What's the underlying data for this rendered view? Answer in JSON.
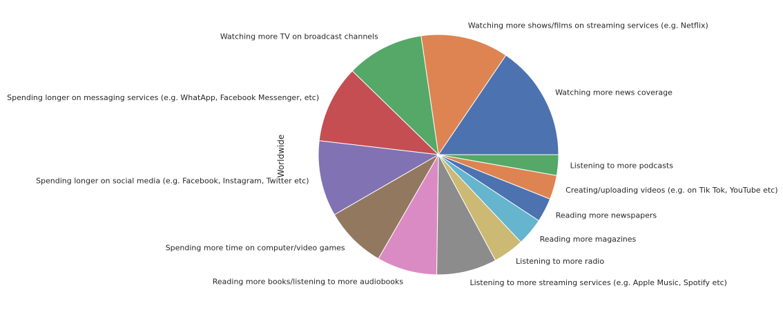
{
  "chart_data": {
    "type": "pie",
    "ylabel": "Worldwide",
    "start_angle_deg": 0,
    "direction": "counterclockwise",
    "slices": [
      {
        "label": "Watching more news coverage",
        "value": 67,
        "color": "#4c72b0"
      },
      {
        "label": "Watching more shows/films on streaming services (e.g. Netflix)",
        "value": 51,
        "color": "#dd8452"
      },
      {
        "label": "Watching more TV on broadcast channels",
        "value": 45,
        "color": "#55a868"
      },
      {
        "label": "Spending longer on messaging services (e.g. WhatApp, Facebook Messenger, etc)",
        "value": 45,
        "color": "#c44e52"
      },
      {
        "label": "Spending longer on social media (e.g. Facebook, Instagram, Twitter etc)",
        "value": 44,
        "color": "#8172b3"
      },
      {
        "label": "Spending more time on computer/video games",
        "value": 36,
        "color": "#937860"
      },
      {
        "label": "Reading more books/listening to more audiobooks",
        "value": 35,
        "color": "#da8bc3"
      },
      {
        "label": "Listening to more streaming services (e.g. Apple Music, Spotify etc)",
        "value": 35,
        "color": "#8c8c8c"
      },
      {
        "label": "Listening to more radio",
        "value": 18,
        "color": "#ccb974"
      },
      {
        "label": "Reading more magazines",
        "value": 16,
        "color": "#64b5cd"
      },
      {
        "label": "Reading more newspapers",
        "value": 14,
        "color": "#4c72b0"
      },
      {
        "label": "Creating/uploading videos (e.g. on Tik Tok, YouTube etc)",
        "value": 14,
        "color": "#dd8452"
      },
      {
        "label": "Listening to more podcasts",
        "value": 12,
        "color": "#55a868"
      }
    ]
  }
}
